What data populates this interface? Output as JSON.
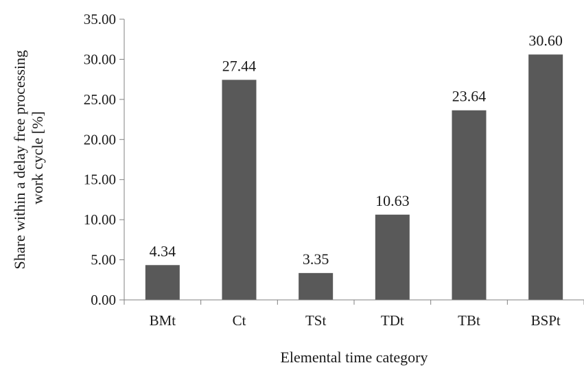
{
  "chart_data": {
    "type": "bar",
    "title": "",
    "xlabel": "Elemental time category",
    "ylabel_lines": [
      "Share within a delay free processing",
      "work cycle [%]"
    ],
    "categories": [
      "BMt",
      "Ct",
      "TSt",
      "TDt",
      "TBt",
      "BSPt"
    ],
    "values": [
      4.34,
      27.44,
      3.35,
      10.63,
      23.64,
      30.6
    ],
    "data_labels": [
      "4.34",
      "27.44",
      "3.35",
      "10.63",
      "23.64",
      "30.60"
    ],
    "ylim": [
      0,
      35
    ],
    "yticks": [
      0,
      5,
      10,
      15,
      20,
      25,
      30,
      35
    ],
    "ytick_labels": [
      "0.00",
      "5.00",
      "10.00",
      "15.00",
      "20.00",
      "25.00",
      "30.00",
      "35.00"
    ],
    "bar_color": "#595959",
    "grid": false,
    "legend": "none"
  }
}
